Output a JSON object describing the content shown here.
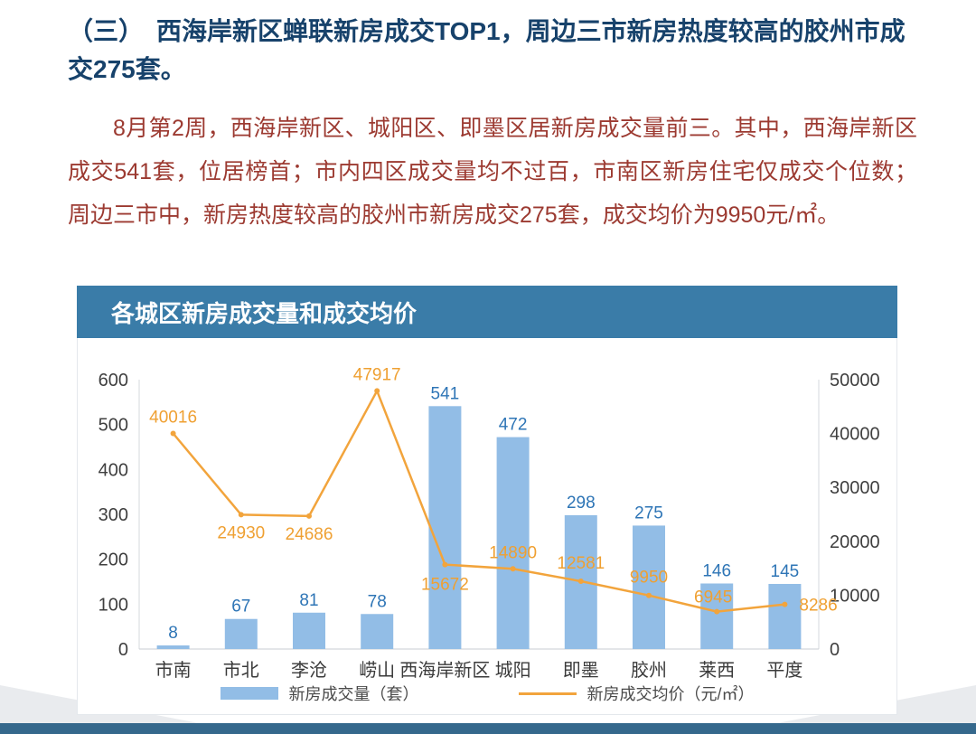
{
  "heading": "（三）　西海岸新区蝉联新房成交TOP1，周边三市新房热度较高的胶州市成交275套。",
  "paragraph": "8月第2周，西海岸新区、城阳区、即墨区居新房成交量前三。其中，西海岸新区成交541套，位居榜首；市内四区成交量均不过百，市南区新房住宅仅成交个位数；周边三市中，新房热度较高的胶州市新房成交275套，成交均价为9950元/㎡。",
  "chart_data": {
    "type": "bar+line",
    "title": "各城区新房成交量和成交均价",
    "categories": [
      "市南",
      "市北",
      "李沧",
      "崂山",
      "西海岸新区",
      "城阳",
      "即墨",
      "胶州",
      "莱西",
      "平度"
    ],
    "series": [
      {
        "name": "新房成交量（套）",
        "type": "bar",
        "axis": "left",
        "values": [
          8,
          67,
          81,
          78,
          541,
          472,
          298,
          275,
          146,
          145
        ]
      },
      {
        "name": "新房成交均价（元/㎡）",
        "type": "line",
        "axis": "right",
        "values": [
          40016,
          24930,
          24686,
          47917,
          15672,
          14890,
          12581,
          9950,
          6945,
          8286
        ]
      }
    ],
    "left_axis": {
      "min": 0,
      "max": 600,
      "step": 100
    },
    "right_axis": {
      "min": 0,
      "max": 50000,
      "step": 10000
    },
    "legend_position": "bottom",
    "grid": false
  },
  "colors": {
    "bar": "#92BDE6",
    "bar_label": "#2E75B6",
    "line": "#F2A43C",
    "line_label": "#EFA032",
    "chart_header_bg": "#3A7CA8",
    "heading_text": "#17426B",
    "body_text": "#9C3A31",
    "axis_text": "#3F3F3F",
    "footer_bar": "#35688C"
  }
}
